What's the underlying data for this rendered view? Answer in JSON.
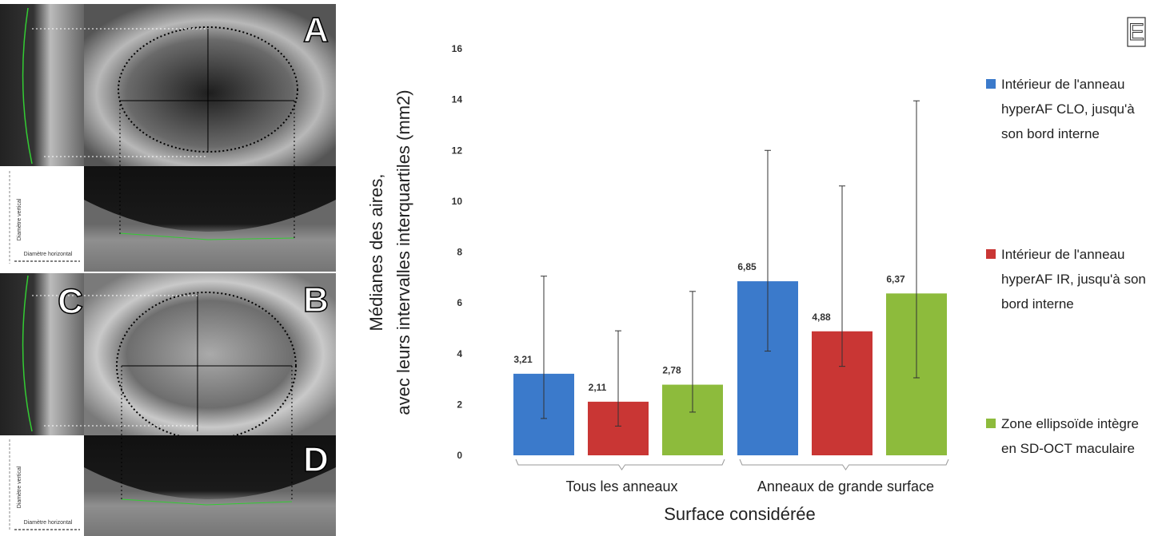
{
  "images": {
    "panel_letters": [
      "A",
      "B",
      "C",
      "D"
    ],
    "vertical_diameter": "Diamètre vertical",
    "horizontal_diameter": "Diamètre horizontal"
  },
  "chart_data": {
    "type": "bar",
    "panel_label": "E",
    "y_label": [
      "Médianes des aires,",
      "avec leurs intervalles interquartiles  (mm2)"
    ],
    "x_label": "Surface considérée",
    "categories": [
      "Tous les anneaux",
      "Anneaux de grande surface"
    ],
    "ylim": [
      0,
      16
    ],
    "yticks": [
      0,
      2,
      4,
      6,
      8,
      10,
      12,
      14,
      16
    ],
    "series": [
      {
        "name": "Intérieur de l'anneau hyperAF CLO, jusqu'à son bord interne",
        "color": "#3b7acb",
        "values": [
          3.21,
          6.85
        ],
        "value_labels": [
          "3,21",
          "6,85"
        ],
        "error_low": [
          1.45,
          4.1
        ],
        "error_high": [
          7.05,
          12.0
        ]
      },
      {
        "name": "Intérieur de l'anneau hyperAF IR, jusqu'à son bord interne",
        "color": "#c93634",
        "values": [
          2.11,
          4.88
        ],
        "value_labels": [
          "2,11",
          "4,88"
        ],
        "error_low": [
          1.15,
          3.5
        ],
        "error_high": [
          4.9,
          10.6
        ]
      },
      {
        "name": "Zone ellipsoïde intègre en SD-OCT maculaire",
        "color": "#8dbb3c",
        "values": [
          2.78,
          6.37
        ],
        "value_labels": [
          "2,78",
          "6,37"
        ],
        "error_low": [
          1.7,
          3.05
        ],
        "error_high": [
          6.45,
          13.95
        ]
      }
    ]
  }
}
